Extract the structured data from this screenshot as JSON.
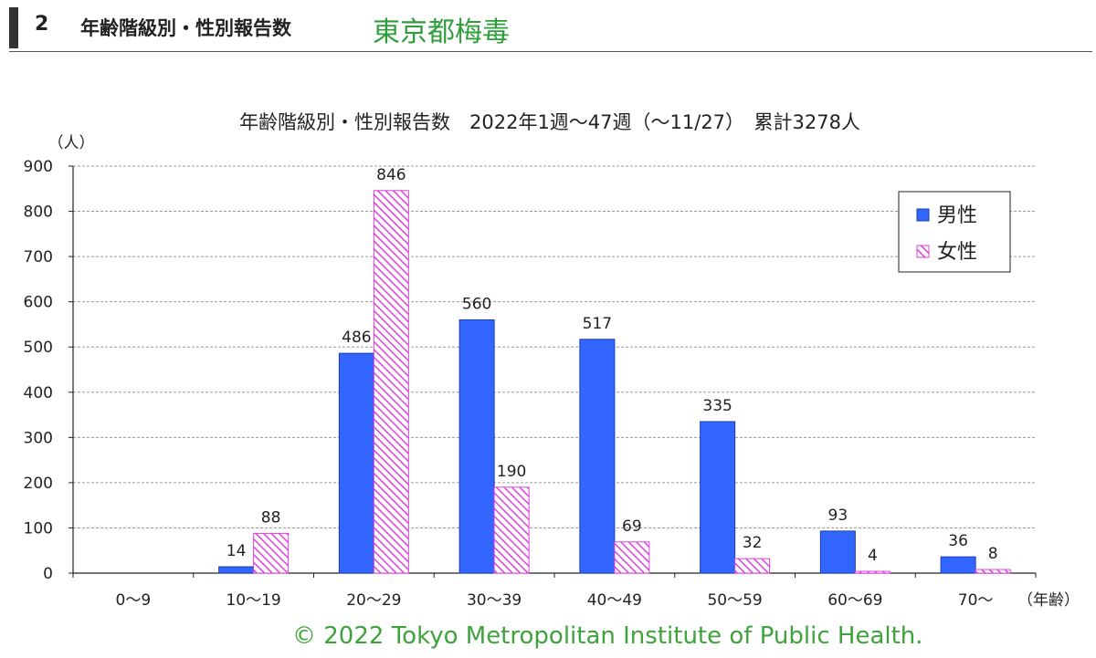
{
  "header": {
    "number": "2",
    "title": "年齢階級別・性別報告数",
    "subtitle": "東京都梅毒"
  },
  "footer": {
    "copyright": "© 2022 Tokyo Metropolitan Institute of Public Health."
  },
  "chart_data": {
    "type": "bar",
    "title": "年齢階級別・性別報告数　2022年1週～47週（～11/27）　累計3278人",
    "ylabel": "（人）",
    "xlabel": "（年齢）",
    "ylim": [
      0,
      900
    ],
    "yticks": [
      0,
      100,
      200,
      300,
      400,
      500,
      600,
      700,
      800,
      900
    ],
    "grid": true,
    "legend_position": "top-right",
    "categories": [
      "0～9",
      "10～19",
      "20～29",
      "30～39",
      "40～49",
      "50～59",
      "60～69",
      "70～"
    ],
    "series": [
      {
        "name": "男性",
        "color": "#3366ff",
        "pattern": "solid",
        "values": [
          0,
          14,
          486,
          560,
          517,
          335,
          93,
          36
        ],
        "labels": [
          "",
          "14",
          "486",
          "560",
          "517",
          "335",
          "93",
          "36"
        ]
      },
      {
        "name": "女性",
        "color": "#e040e0",
        "pattern": "hatched",
        "values": [
          0,
          88,
          846,
          190,
          69,
          32,
          4,
          8
        ],
        "labels": [
          "",
          "88",
          "846",
          "190",
          "69",
          "32",
          "4",
          "8"
        ]
      }
    ]
  }
}
